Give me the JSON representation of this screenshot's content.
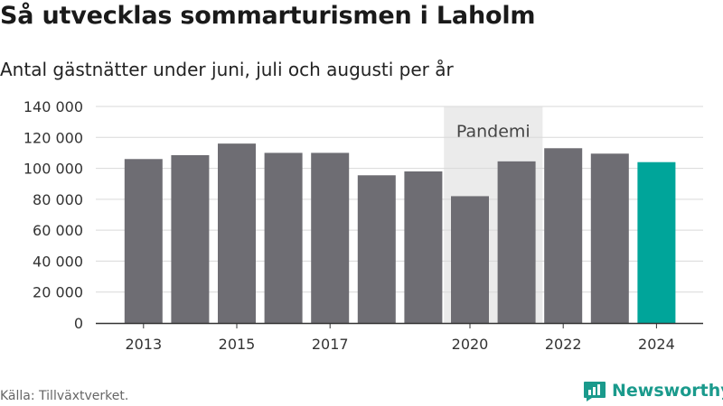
{
  "header": {
    "title": "Så utvecklas sommarturismen i Laholm",
    "subtitle": "Antal gästnätter under juni, juli och augusti per år"
  },
  "chart_data": {
    "type": "bar",
    "title": "Så utvecklas sommarturismen i Laholm",
    "subtitle": "Antal gästnätter under juni, juli och augusti per år",
    "xlabel": "",
    "ylabel": "",
    "categories": [
      "2013",
      "2014",
      "2015",
      "2016",
      "2017",
      "2018",
      "2019",
      "2020",
      "2021",
      "2022",
      "2023",
      "2024"
    ],
    "values": [
      106000,
      108500,
      116000,
      110000,
      110000,
      95500,
      98000,
      82000,
      104500,
      113000,
      109500,
      104000
    ],
    "highlight_category": "2024",
    "colors": {
      "bar": "#6e6d73",
      "highlight": "#00a59a",
      "band": "#ebebeb"
    },
    "ylim": [
      0,
      140000
    ],
    "y_ticks": [
      {
        "value": 0,
        "label": "0"
      },
      {
        "value": 20000,
        "label": "20 000"
      },
      {
        "value": 40000,
        "label": "40 000"
      },
      {
        "value": 60000,
        "label": "60 000"
      },
      {
        "value": 80000,
        "label": "80 000"
      },
      {
        "value": 100000,
        "label": "100 000"
      },
      {
        "value": 120000,
        "label": "120 000"
      },
      {
        "value": 140000,
        "label": "140 000"
      }
    ],
    "x_tick_labels": [
      "2013",
      "2015",
      "2017",
      "2020",
      "2022",
      "2024"
    ],
    "grid": true,
    "annotation_band": {
      "label": "Pandemi",
      "from": "2020",
      "to": "2021"
    }
  },
  "footer": {
    "source": "Källa: Tillväxtverket.",
    "brand": "Newsworthy",
    "brand_icon": "newsworthy-logo-icon"
  }
}
